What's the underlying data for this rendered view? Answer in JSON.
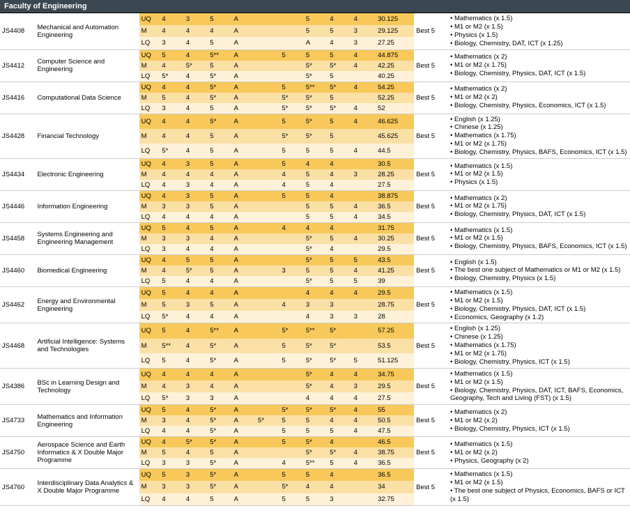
{
  "header": "Faculty of Engineering",
  "colors": {
    "dark": "#f8c95a",
    "med": "#fbe0a6",
    "light": "#fdf2d8",
    "white": "#ffffff",
    "headerBg": "#3a4750"
  },
  "valueColCount": 9,
  "programmes": [
    {
      "code": "JS4408",
      "name": "Mechanical and Automation Engineering",
      "selection": "Best 5",
      "tiers": [
        {
          "t": "UQ",
          "v": [
            "4",
            "3",
            "5",
            "A",
            "",
            "",
            "5",
            "4",
            "4"
          ],
          "s": "30.125",
          "bg": "dark"
        },
        {
          "t": "M",
          "v": [
            "4",
            "4",
            "4",
            "A",
            "",
            "",
            "5",
            "5",
            "3"
          ],
          "s": "29.125",
          "bg": "med"
        },
        {
          "t": "LQ",
          "v": [
            "3",
            "4",
            "5",
            "A",
            "",
            "",
            "A",
            "4",
            "3"
          ],
          "s": "27.25",
          "bg": "light"
        }
      ],
      "weights": [
        "Mathematics (x 1.5)",
        "M1 or M2 (x 1.5)",
        "Physics (x 1.5)",
        "Biology, Chemistry, DAT, ICT (x 1.25)"
      ]
    },
    {
      "code": "JS4412",
      "name": "Computer Science and Engineering",
      "selection": "Best 5",
      "tiers": [
        {
          "t": "UQ",
          "v": [
            "5",
            "4",
            "5**",
            "A",
            "",
            "5",
            "5",
            "5",
            "4"
          ],
          "s": "44.875",
          "bg": "dark"
        },
        {
          "t": "M",
          "v": [
            "4",
            "5*",
            "5",
            "A",
            "",
            "",
            "5*",
            "5*",
            "4"
          ],
          "s": "42.25",
          "bg": "med"
        },
        {
          "t": "LQ",
          "v": [
            "5*",
            "4",
            "5*",
            "A",
            "",
            "",
            "5*",
            "5",
            ""
          ],
          "s": "40.25",
          "bg": "light"
        }
      ],
      "weights": [
        "Mathematics (x 2)",
        "M1 or M2 (x 1.75)",
        "Biology, Chemistry, Physics, DAT, ICT (x 1.5)"
      ]
    },
    {
      "code": "JS4416",
      "name": "Computational Data Science",
      "selection": "Best 5",
      "tiers": [
        {
          "t": "UQ",
          "v": [
            "4",
            "4",
            "5*",
            "A",
            "",
            "5",
            "5**",
            "5*",
            "4"
          ],
          "s": "54.25",
          "bg": "dark"
        },
        {
          "t": "M",
          "v": [
            "5",
            "4",
            "5*",
            "A",
            "",
            "5*",
            "5*",
            "5",
            ""
          ],
          "s": "52.25",
          "bg": "med"
        },
        {
          "t": "LQ",
          "v": [
            "3",
            "4",
            "5",
            "A",
            "",
            "5*",
            "5*",
            "5*",
            "4"
          ],
          "s": "52",
          "bg": "light"
        }
      ],
      "weights": [
        "Mathematics (x 2)",
        "M1 or M2 (x 2)",
        "Biology, Chemistry, Physics, Economics, ICT (x 1.5)"
      ]
    },
    {
      "code": "JS4428",
      "name": "Financial Technology",
      "selection": "Best 5",
      "tiers": [
        {
          "t": "UQ",
          "v": [
            "4",
            "4",
            "5*",
            "A",
            "",
            "5",
            "5*",
            "5",
            "4"
          ],
          "s": "46.625",
          "bg": "dark"
        },
        {
          "t": "M",
          "v": [
            "4",
            "4",
            "5",
            "A",
            "",
            "5*",
            "5*",
            "5",
            ""
          ],
          "s": "45.625",
          "bg": "med"
        },
        {
          "t": "LQ",
          "v": [
            "5*",
            "4",
            "5",
            "A",
            "",
            "5",
            "5",
            "5",
            "4"
          ],
          "s": "44.5",
          "bg": "light"
        }
      ],
      "weights": [
        "English (x 1.25)",
        "Chinese (x 1.25)",
        "Mathematics (x 1.75)",
        "M1 or M2 (x 1.75)",
        "Biology, Chemistry, Physics, BAFS, Economics, ICT (x 1.5)"
      ]
    },
    {
      "code": "JS4434",
      "name": "Electronic Engineering",
      "selection": "Best 5",
      "tiers": [
        {
          "t": "UQ",
          "v": [
            "4",
            "3",
            "5",
            "A",
            "",
            "5",
            "4",
            "4",
            ""
          ],
          "s": "30.5",
          "bg": "dark"
        },
        {
          "t": "M",
          "v": [
            "4",
            "4",
            "4",
            "A",
            "",
            "4",
            "5",
            "4",
            "3"
          ],
          "s": "28.25",
          "bg": "med"
        },
        {
          "t": "LQ",
          "v": [
            "4",
            "3",
            "4",
            "A",
            "",
            "4",
            "5",
            "4",
            ""
          ],
          "s": "27.5",
          "bg": "light"
        }
      ],
      "weights": [
        "Mathematics (x 1.5)",
        "M1 or M2 (x 1.5)",
        "Physics (x 1.5)"
      ]
    },
    {
      "code": "JS4446",
      "name": "Information Engineering",
      "selection": "Best 5",
      "tiers": [
        {
          "t": "UQ",
          "v": [
            "4",
            "3",
            "5",
            "A",
            "",
            "5",
            "5",
            "4",
            ""
          ],
          "s": "38.875",
          "bg": "dark"
        },
        {
          "t": "M",
          "v": [
            "3",
            "3",
            "5",
            "A",
            "",
            "",
            "5",
            "5",
            "4"
          ],
          "s": "36.5",
          "bg": "med"
        },
        {
          "t": "LQ",
          "v": [
            "4",
            "4",
            "4",
            "A",
            "",
            "",
            "5",
            "5",
            "4"
          ],
          "s": "34.5",
          "bg": "light"
        }
      ],
      "weights": [
        "Mathematics (x 2)",
        "M1 or M2 (x 1.75)",
        "Biology, Chemistry, Physics, DAT, ICT (x 1.5)"
      ]
    },
    {
      "code": "JS4458",
      "name": "Systems Engineering and Engineering Management",
      "selection": "Best 5",
      "tiers": [
        {
          "t": "UQ",
          "v": [
            "5",
            "4",
            "5",
            "A",
            "",
            "4",
            "4",
            "4",
            ""
          ],
          "s": "31.75",
          "bg": "dark"
        },
        {
          "t": "M",
          "v": [
            "3",
            "3",
            "4",
            "A",
            "",
            "",
            "5*",
            "5",
            "4"
          ],
          "s": "30.25",
          "bg": "med"
        },
        {
          "t": "LQ",
          "v": [
            "3",
            "4",
            "4",
            "A",
            "",
            "",
            "5*",
            "4",
            ""
          ],
          "s": "29.5",
          "bg": "light"
        }
      ],
      "weights": [
        "Mathematics (x 1.5)",
        "M1 or M2 (x 1.5)",
        "Biology, Chemistry, Physics, BAFS, Economics, ICT (x 1.5)"
      ]
    },
    {
      "code": "JS4460",
      "name": "Biomedical Engineering",
      "selection": "Best 5",
      "tiers": [
        {
          "t": "UQ",
          "v": [
            "4",
            "5",
            "5",
            "A",
            "",
            "",
            "5*",
            "5",
            "5"
          ],
          "s": "43.5",
          "bg": "dark"
        },
        {
          "t": "M",
          "v": [
            "4",
            "5*",
            "5",
            "A",
            "",
            "3",
            "5",
            "5",
            "4"
          ],
          "s": "41.25",
          "bg": "med"
        },
        {
          "t": "LQ",
          "v": [
            "5",
            "4",
            "4",
            "A",
            "",
            "",
            "5*",
            "5",
            "5"
          ],
          "s": "39",
          "bg": "light"
        }
      ],
      "weights": [
        "English (x 1.5)",
        "The best one subject of Mathematics or M1 or M2 (x 1.5)",
        "Biology, Chemistry, Physics (x 1.5)"
      ]
    },
    {
      "code": "JS4462",
      "name": "Energy and Environmental Engineering",
      "selection": "Best 5",
      "tiers": [
        {
          "t": "UQ",
          "v": [
            "5",
            "4",
            "4",
            "A",
            "",
            "",
            "4",
            "4",
            "4"
          ],
          "s": "29.5",
          "bg": "dark"
        },
        {
          "t": "M",
          "v": [
            "5",
            "3",
            "5",
            "A",
            "",
            "4",
            "3",
            "3",
            ""
          ],
          "s": "28.75",
          "bg": "med"
        },
        {
          "t": "LQ",
          "v": [
            "5*",
            "4",
            "4",
            "A",
            "",
            "",
            "4",
            "3",
            "3"
          ],
          "s": "28",
          "bg": "light"
        }
      ],
      "weights": [
        "Mathematics (x 1.5)",
        "M1 or M2 (x 1.5)",
        "Biology, Chemistry, Physics, DAT, ICT (x 1.5)",
        "Economics, Geography (x 1.2)"
      ]
    },
    {
      "code": "JS4468",
      "name": "Artificial Intelligence: Systems and Technologies",
      "selection": "Best 5",
      "tiers": [
        {
          "t": "UQ",
          "v": [
            "5",
            "4",
            "5**",
            "A",
            "",
            "5*",
            "5**",
            "5*",
            ""
          ],
          "s": "57.25",
          "bg": "dark"
        },
        {
          "t": "M",
          "v": [
            "5**",
            "4",
            "5*",
            "A",
            "",
            "5",
            "5*",
            "5*",
            ""
          ],
          "s": "53.5",
          "bg": "med"
        },
        {
          "t": "LQ",
          "v": [
            "5",
            "4",
            "5*",
            "A",
            "",
            "5",
            "5*",
            "5*",
            "5"
          ],
          "s": "51.125",
          "bg": "light"
        }
      ],
      "weights": [
        "English (x 1.25)",
        "Chinese (x 1.25)",
        "Mathematics (x 1.75)",
        "M1 or M2 (x 1.75)",
        "Biology, Chemistry, Physics, ICT (x 1.5)"
      ]
    },
    {
      "code": "JS4386",
      "name": "BSc in Learning Design and Technology",
      "selection": "Best 5",
      "tiers": [
        {
          "t": "UQ",
          "v": [
            "4",
            "4",
            "4",
            "A",
            "",
            "",
            "5*",
            "4",
            "4"
          ],
          "s": "34.75",
          "bg": "dark"
        },
        {
          "t": "M",
          "v": [
            "4",
            "3",
            "4",
            "A",
            "",
            "",
            "5*",
            "4",
            "3"
          ],
          "s": "29.5",
          "bg": "med"
        },
        {
          "t": "LQ",
          "v": [
            "5*",
            "3",
            "3",
            "A",
            "",
            "",
            "4",
            "4",
            "4"
          ],
          "s": "27.5",
          "bg": "light"
        }
      ],
      "weights": [
        "Mathematics (x 1.5)",
        "M1 or M2 (x 1.5)",
        "Biology, Chemistry, Physics, DAT, ICT, BAFS, Economics, Geography, Tech and Living (FST) (x 1.5)"
      ]
    },
    {
      "code": "JS4733",
      "name": "Mathematics and Information Engineering",
      "selection": "Best 5",
      "tiers": [
        {
          "t": "UQ",
          "v": [
            "5",
            "4",
            "5*",
            "A",
            "",
            "5*",
            "5*",
            "5*",
            "4"
          ],
          "s": "55",
          "bg": "dark"
        },
        {
          "t": "M",
          "v": [
            "3",
            "4",
            "5*",
            "A",
            "5*",
            "5",
            "5",
            "4",
            "4"
          ],
          "s": "50.5",
          "bg": "med"
        },
        {
          "t": "LQ",
          "v": [
            "4",
            "4",
            "5*",
            "A",
            "",
            "5",
            "5",
            "5",
            "4"
          ],
          "s": "47.5",
          "bg": "light"
        }
      ],
      "weights": [
        "Mathematics (x 2)",
        "M1 or M2 (x 2)",
        "Biology, Chemistry, Physics, ICT (x 1.5)"
      ]
    },
    {
      "code": "JS4750",
      "name": "Aerospace Science and Earth Informatics & X Double Major Programme",
      "selection": "Best 5",
      "tiers": [
        {
          "t": "UQ",
          "v": [
            "4",
            "5*",
            "5*",
            "A",
            "",
            "5",
            "5*",
            "4",
            ""
          ],
          "s": "46.5",
          "bg": "dark"
        },
        {
          "t": "M",
          "v": [
            "5",
            "4",
            "5",
            "A",
            "",
            "",
            "5*",
            "5*",
            "4"
          ],
          "s": "38.75",
          "bg": "med"
        },
        {
          "t": "LQ",
          "v": [
            "3",
            "3",
            "5*",
            "A",
            "",
            "4",
            "5**",
            "5",
            "4"
          ],
          "s": "36.5",
          "bg": "light"
        }
      ],
      "weights": [
        "Mathematics (x 1.5)",
        "M1 or M2 (x 2)",
        "Physics, Geography (x 2)"
      ]
    },
    {
      "code": "JS4760",
      "name": "Interdisciplinary Data Analytics & X Double Major Programme",
      "selection": "Best 5",
      "tiers": [
        {
          "t": "UQ",
          "v": [
            "5",
            "3",
            "5*",
            "A",
            "",
            "5",
            "5",
            "4",
            ""
          ],
          "s": "36.5",
          "bg": "dark"
        },
        {
          "t": "M",
          "v": [
            "3",
            "3",
            "5*",
            "A",
            "",
            "5*",
            "4",
            "4",
            ""
          ],
          "s": "34",
          "bg": "med"
        },
        {
          "t": "LQ",
          "v": [
            "4",
            "4",
            "5",
            "A",
            "",
            "5",
            "5",
            "3",
            ""
          ],
          "s": "32.75",
          "bg": "light"
        }
      ],
      "weights": [
        "Mathematics (x 1.5)",
        "M1 or M2 (x 1.5)",
        "The best one subject of Physics, Economics, BAFS or ICT (x 1.5)"
      ]
    }
  ]
}
